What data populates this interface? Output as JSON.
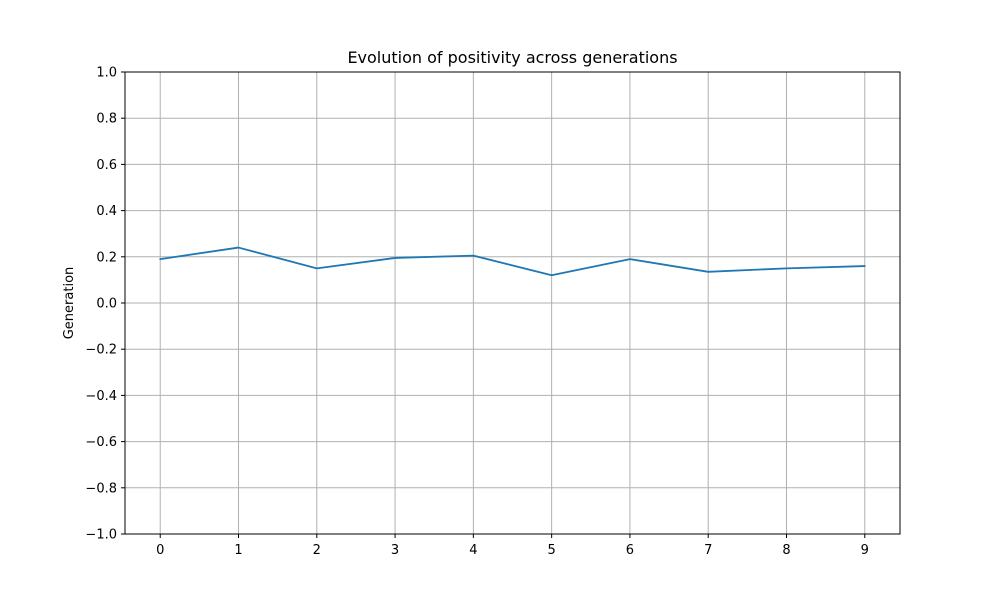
{
  "chart_data": {
    "type": "line",
    "title": "Evolution of positivity across generations",
    "xlabel": "",
    "ylabel": "Generation",
    "x": [
      0,
      1,
      2,
      3,
      4,
      5,
      6,
      7,
      8,
      9
    ],
    "series": [
      {
        "values": [
          0.19,
          0.24,
          0.15,
          0.195,
          0.205,
          0.12,
          0.19,
          0.135,
          0.15,
          0.16
        ],
        "color": "#1f77b4"
      }
    ],
    "xlim": [
      -0.45,
      9.45
    ],
    "ylim": [
      -1.0,
      1.0
    ],
    "xticks": [
      0,
      1,
      2,
      3,
      4,
      5,
      6,
      7,
      8,
      9
    ],
    "xtick_labels": [
      "0",
      "1",
      "2",
      "3",
      "4",
      "5",
      "6",
      "7",
      "8",
      "9"
    ],
    "yticks": [
      -1.0,
      -0.8,
      -0.6,
      -0.4,
      -0.2,
      0.0,
      0.2,
      0.4,
      0.6,
      0.8,
      1.0
    ],
    "ytick_labels": [
      "−1.0",
      "−0.8",
      "−0.6",
      "−0.4",
      "−0.2",
      "0.0",
      "0.2",
      "0.4",
      "0.6",
      "0.8",
      "1.0"
    ],
    "grid": true,
    "grid_color": "#b0b0b0"
  }
}
